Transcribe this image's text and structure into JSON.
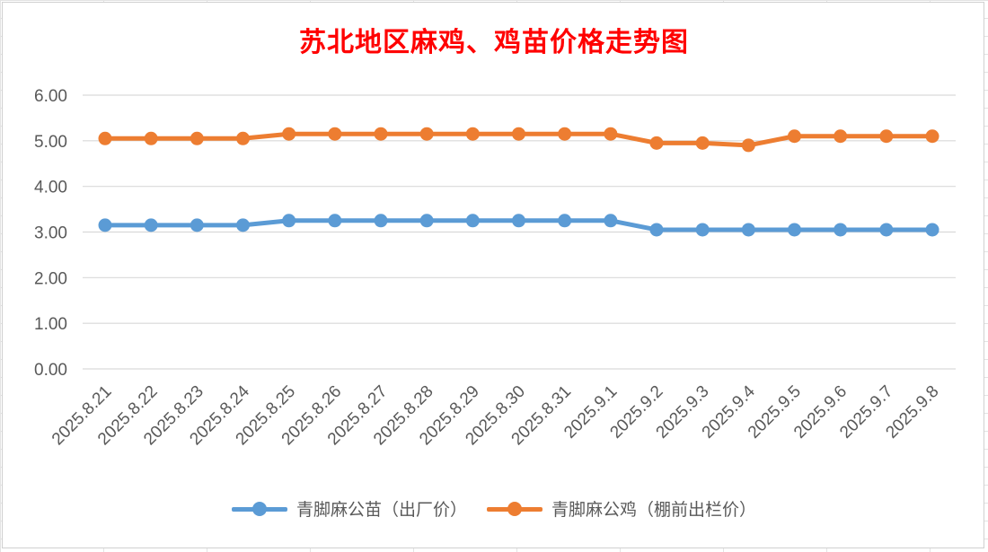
{
  "chart_data": {
    "type": "line",
    "title": "苏北地区麻鸡、鸡苗价格走势图",
    "categories": [
      "2025.8.21",
      "2025.8.22",
      "2025.8.23",
      "2025.8.24",
      "2025.8.25",
      "2025.8.26",
      "2025.8.27",
      "2025.8.28",
      "2025.8.29",
      "2025.8.30",
      "2025.8.31",
      "2025.9.1",
      "2025.9.2",
      "2025.9.3",
      "2025.9.4",
      "2025.9.5",
      "2025.9.6",
      "2025.9.7",
      "2025.9.8"
    ],
    "series": [
      {
        "name": "青脚麻公苗（出厂价）",
        "color": "#5b9bd5",
        "values": [
          3.15,
          3.15,
          3.15,
          3.15,
          3.25,
          3.25,
          3.25,
          3.25,
          3.25,
          3.25,
          3.25,
          3.25,
          3.05,
          3.05,
          3.05,
          3.05,
          3.05,
          3.05,
          3.05
        ]
      },
      {
        "name": "青脚麻公鸡（棚前出栏价）",
        "color": "#ed7d31",
        "values": [
          5.05,
          5.05,
          5.05,
          5.05,
          5.15,
          5.15,
          5.15,
          5.15,
          5.15,
          5.15,
          5.15,
          5.15,
          4.95,
          4.95,
          4.9,
          5.1,
          5.1,
          5.1,
          5.1
        ]
      }
    ],
    "ylim": [
      0,
      6
    ],
    "yticks": [
      "0.00",
      "1.00",
      "2.00",
      "3.00",
      "4.00",
      "5.00",
      "6.00"
    ],
    "grid": true,
    "legend": "bottom",
    "xlabel": "",
    "ylabel": ""
  }
}
